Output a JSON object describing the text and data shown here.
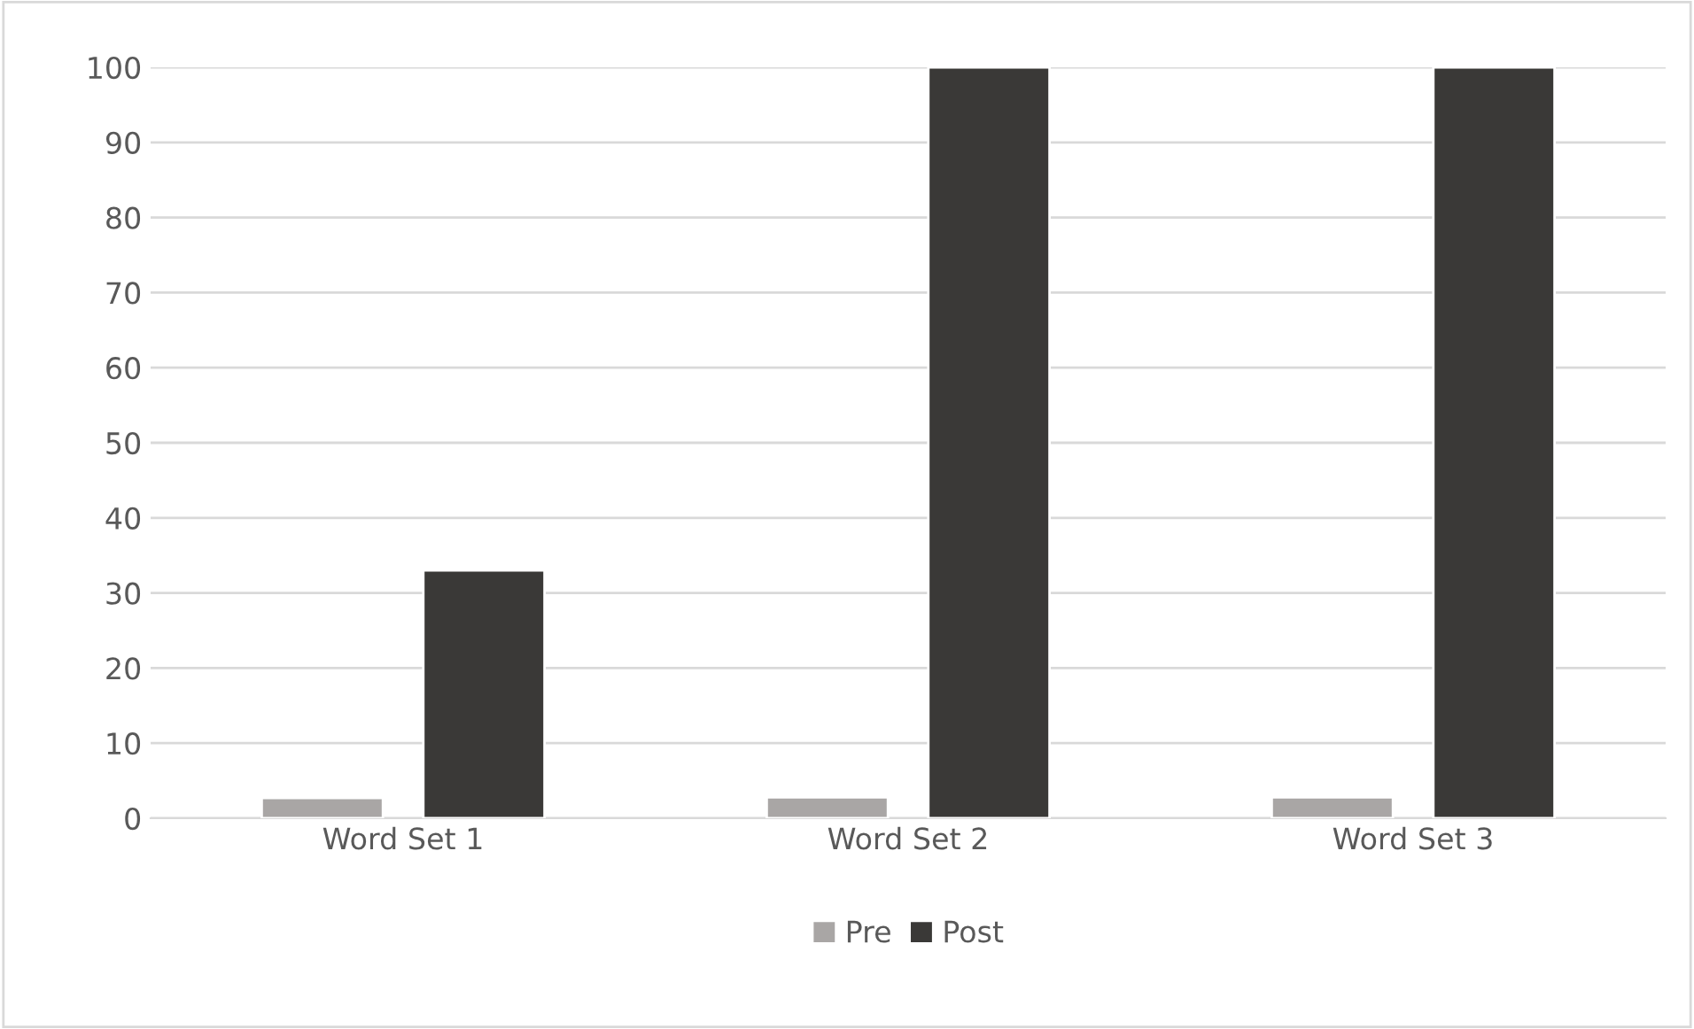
{
  "chart_data": {
    "type": "bar",
    "categories": [
      "Word Set 1",
      "Word Set 2",
      "Word Set 3"
    ],
    "series": [
      {
        "name": "Pre",
        "color": "#a9a6a5",
        "values": [
          2.7,
          2.8,
          2.8
        ]
      },
      {
        "name": "Post",
        "color": "#3a3937",
        "values": [
          33,
          100,
          100
        ]
      }
    ],
    "ylim": [
      0,
      100
    ],
    "yticks": [
      0,
      10,
      20,
      30,
      40,
      50,
      60,
      70,
      80,
      90,
      100
    ],
    "grid": "y",
    "legend": "bottom"
  }
}
